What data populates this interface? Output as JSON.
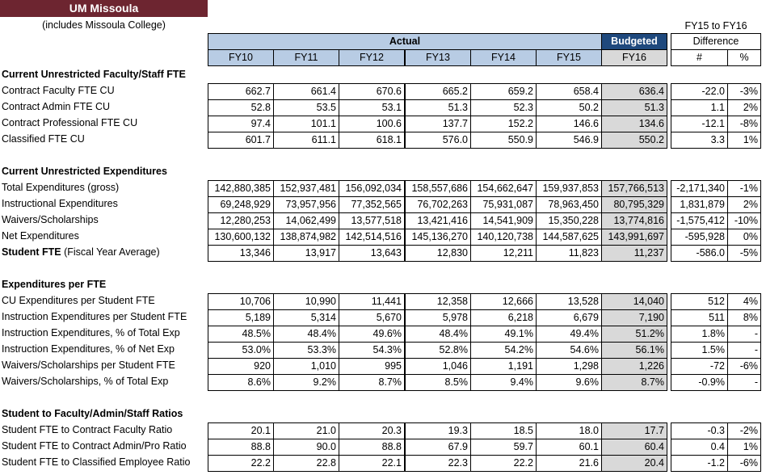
{
  "title": "UM Missoula",
  "subtitle": "(includes Missoula College)",
  "diff_header_top": "FY15 to FY16",
  "diff_header": "Difference",
  "diff_cols": [
    "#",
    "%"
  ],
  "actual_header": "Actual",
  "budgeted_header": "Budgeted",
  "years": [
    "FY10",
    "FY11",
    "FY12",
    "FY13",
    "FY14",
    "FY15",
    "FY16"
  ],
  "sections": [
    {
      "heading": "Current Unrestricted Faculty/Staff FTE",
      "rows": [
        {
          "label": "Contract Faculty FTE CU",
          "values": [
            "662.7",
            "661.4",
            "670.6",
            "665.2",
            "659.2",
            "658.4",
            "636.4"
          ],
          "diff": "-22.0",
          "pct": "-3%"
        },
        {
          "label": "Contract Admin FTE CU",
          "values": [
            "52.8",
            "53.5",
            "53.1",
            "51.3",
            "52.3",
            "50.2",
            "51.3"
          ],
          "diff": "1.1",
          "pct": "2%"
        },
        {
          "label": "Contract Professional FTE CU",
          "values": [
            "97.4",
            "101.1",
            "100.6",
            "137.7",
            "152.2",
            "146.6",
            "134.6"
          ],
          "diff": "-12.1",
          "pct": "-8%"
        },
        {
          "label": "Classified FTE CU",
          "values": [
            "601.7",
            "611.1",
            "618.1",
            "576.0",
            "550.9",
            "546.9",
            "550.2"
          ],
          "diff": "3.3",
          "pct": "1%"
        }
      ]
    },
    {
      "heading": "Current Unrestricted Expenditures",
      "rows": [
        {
          "label": "Total Expenditures (gross)",
          "values": [
            "142,880,385",
            "152,937,481",
            "156,092,034",
            "158,557,686",
            "154,662,647",
            "159,937,853",
            "157,766,513"
          ],
          "diff": "-2,171,340",
          "pct": "-1%"
        },
        {
          "label": "Instructional Expenditures",
          "values": [
            "69,248,929",
            "73,957,956",
            "77,352,565",
            "76,702,263",
            "75,931,087",
            "78,963,450",
            "80,795,329"
          ],
          "diff": "1,831,879",
          "pct": "2%"
        },
        {
          "label": "Waivers/Scholarships",
          "values": [
            "12,280,253",
            "14,062,499",
            "13,577,518",
            "13,421,416",
            "14,541,909",
            "15,350,228",
            "13,774,816"
          ],
          "diff": "-1,575,412",
          "pct": "-10%"
        },
        {
          "label": "Net Expenditures",
          "values": [
            "130,600,132",
            "138,874,982",
            "142,514,516",
            "145,136,270",
            "140,120,738",
            "144,587,625",
            "143,991,697"
          ],
          "diff": "-595,928",
          "pct": "0%"
        },
        {
          "label": "Student FTE",
          "label_suffix": " (Fiscal Year Average)",
          "bold": true,
          "values": [
            "13,346",
            "13,917",
            "13,643",
            "12,830",
            "12,211",
            "11,823",
            "11,237"
          ],
          "diff": "-586.0",
          "pct": "-5%"
        }
      ]
    },
    {
      "heading": "Expenditures per FTE",
      "rows": [
        {
          "label": "CU Expenditures per Student FTE",
          "values": [
            "10,706",
            "10,990",
            "11,441",
            "12,358",
            "12,666",
            "13,528",
            "14,040"
          ],
          "diff": "512",
          "pct": "4%"
        },
        {
          "label": "Instruction Expenditures per Student FTE",
          "values": [
            "5,189",
            "5,314",
            "5,670",
            "5,978",
            "6,218",
            "6,679",
            "7,190"
          ],
          "diff": "511",
          "pct": "8%"
        },
        {
          "label": "Instruction Expenditures, % of Total Exp",
          "values": [
            "48.5%",
            "48.4%",
            "49.6%",
            "48.4%",
            "49.1%",
            "49.4%",
            "51.2%"
          ],
          "diff": "1.8%",
          "pct": "-"
        },
        {
          "label": "Instruction Expenditures, % of Net Exp",
          "values": [
            "53.0%",
            "53.3%",
            "54.3%",
            "52.8%",
            "54.2%",
            "54.6%",
            "56.1%"
          ],
          "diff": "1.5%",
          "pct": "-"
        },
        {
          "label": "Waivers/Scholarships per Student FTE",
          "values": [
            "920",
            "1,010",
            "995",
            "1,046",
            "1,191",
            "1,298",
            "1,226"
          ],
          "diff": "-72",
          "pct": "-6%"
        },
        {
          "label": "Waivers/Scholarships, % of Total Exp",
          "values": [
            "8.6%",
            "9.2%",
            "8.7%",
            "8.5%",
            "9.4%",
            "9.6%",
            "8.7%"
          ],
          "diff": "-0.9%",
          "pct": "-"
        }
      ]
    },
    {
      "heading": "Student to Faculty/Admin/Staff Ratios",
      "rows": [
        {
          "label": "Student FTE to Contract Faculty Ratio",
          "values": [
            "20.1",
            "21.0",
            "20.3",
            "19.3",
            "18.5",
            "18.0",
            "17.7"
          ],
          "diff": "-0.3",
          "pct": "-2%"
        },
        {
          "label": "Student FTE to Contract Admin/Pro Ratio",
          "values": [
            "88.8",
            "90.0",
            "88.8",
            "67.9",
            "59.7",
            "60.1",
            "60.4"
          ],
          "diff": "0.4",
          "pct": "1%"
        },
        {
          "label": "Student FTE to Classified Employee Ratio",
          "values": [
            "22.2",
            "22.8",
            "22.1",
            "22.3",
            "22.2",
            "21.6",
            "20.4"
          ],
          "diff": "-1.2",
          "pct": "-6%"
        }
      ]
    }
  ]
}
